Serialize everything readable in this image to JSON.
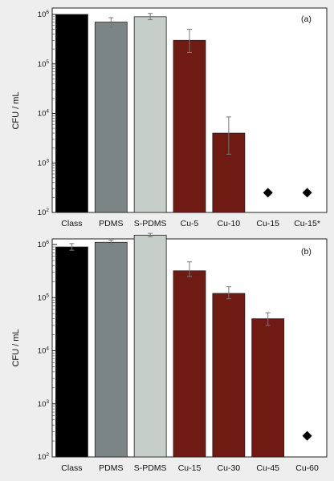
{
  "chart_data": [
    {
      "type": "bar",
      "panel_label": "(a)",
      "ylabel": "CFU / mL",
      "yscale": "log",
      "ylim": [
        100,
        1000000
      ],
      "yticks": [
        {
          "value": 100,
          "base": "10",
          "exp": "2"
        },
        {
          "value": 1000,
          "base": "10",
          "exp": "3"
        },
        {
          "value": 10000,
          "base": "10",
          "exp": "4"
        },
        {
          "value": 100000,
          "base": "10",
          "exp": "5"
        },
        {
          "value": 1000000,
          "base": "10",
          "exp": "6"
        }
      ],
      "categories": [
        "Class",
        "PDMS",
        "S-PDMS",
        "Cu-5",
        "Cu-10",
        "Cu-15",
        "Cu-15*"
      ],
      "values": [
        1000000,
        700000,
        900000,
        300000,
        4000,
        null,
        null
      ],
      "error_low": [
        null,
        550000,
        780000,
        170000,
        1500,
        null,
        null
      ],
      "error_high": [
        null,
        860000,
        1050000,
        500000,
        8500,
        null,
        null
      ],
      "colors": [
        "#000000",
        "#7b8586",
        "#c6ceca",
        "#6f1a13",
        "#6f1a13",
        null,
        null
      ],
      "markers": [
        {
          "category": "Cu-15",
          "value": 250,
          "shape": "diamond"
        },
        {
          "category": "Cu-15*",
          "value": 250,
          "shape": "diamond"
        }
      ]
    },
    {
      "type": "bar",
      "panel_label": "(b)",
      "ylabel": "CFU / mL",
      "yscale": "log",
      "ylim": [
        100,
        1000000
      ],
      "yticks": [
        {
          "value": 100,
          "base": "10",
          "exp": "2"
        },
        {
          "value": 1000,
          "base": "10",
          "exp": "3"
        },
        {
          "value": 10000,
          "base": "10",
          "exp": "4"
        },
        {
          "value": 100000,
          "base": "10",
          "exp": "5"
        },
        {
          "value": 1000000,
          "base": "10",
          "exp": "6"
        }
      ],
      "categories": [
        "Class",
        "PDMS",
        "S-PDMS",
        "Cu-15",
        "Cu-30",
        "Cu-45",
        "Cu-60"
      ],
      "values": [
        900000,
        1100000,
        1500000,
        320000,
        120000,
        40000,
        null
      ],
      "error_low": [
        780000,
        1020000,
        1400000,
        250000,
        95000,
        30000,
        null
      ],
      "error_high": [
        1040000,
        1200000,
        1620000,
        470000,
        160000,
        52000,
        null
      ],
      "colors": [
        "#000000",
        "#7b8586",
        "#c6ceca",
        "#6f1a13",
        "#6f1a13",
        "#6f1a13",
        null
      ],
      "markers": [
        {
          "category": "Cu-60",
          "value": 250,
          "shape": "diamond"
        }
      ]
    }
  ]
}
